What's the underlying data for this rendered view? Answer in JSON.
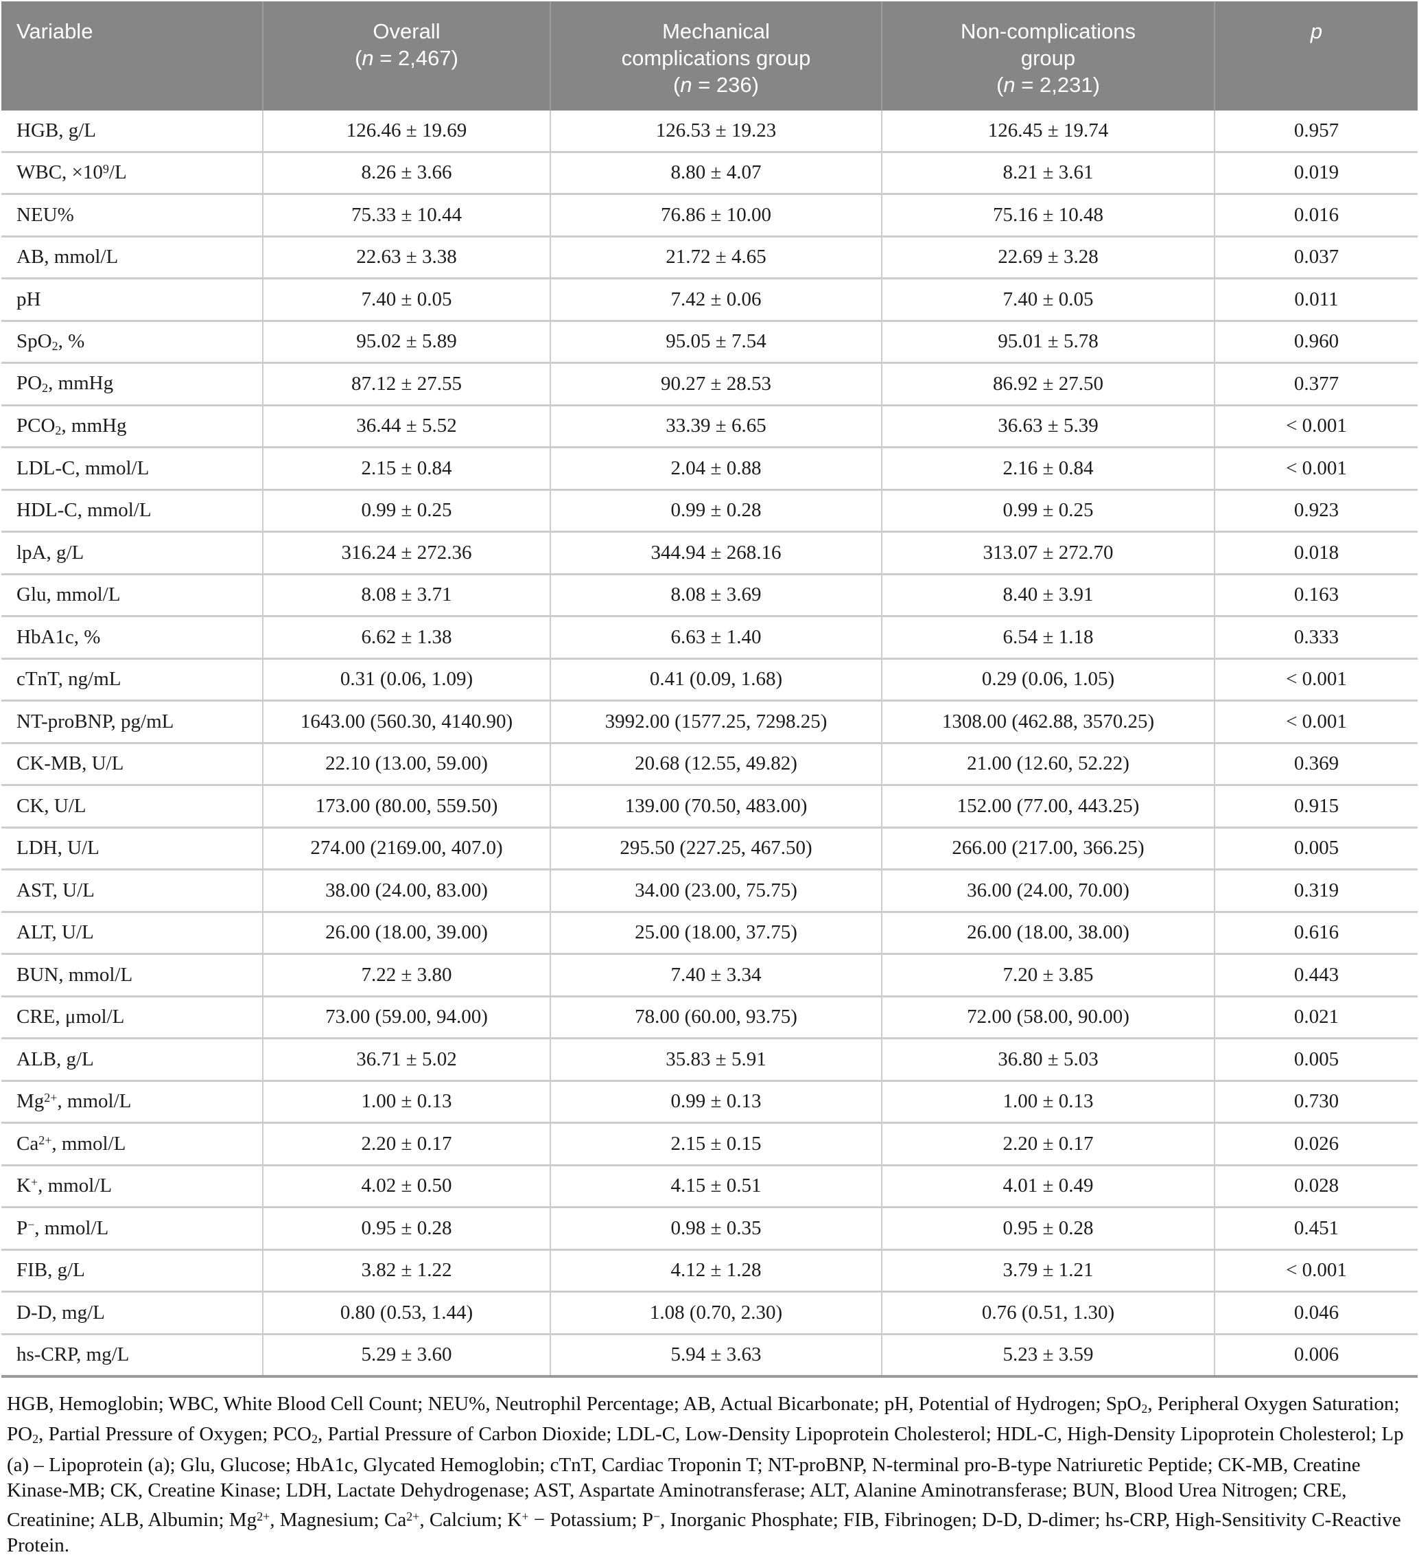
{
  "colors": {
    "header_background": "#868686",
    "header_text": "#ffffff",
    "cell_border": "#cccccc",
    "table_bottom_border": "#9a9a9a",
    "body_text": "#1c1c1c"
  },
  "table": {
    "header": {
      "variable_html": "Variable",
      "overall_html": "Overall<br>(<i>n</i> = 2,467)",
      "mech_html": "Mechanical<br>complications group<br>(<i>n</i> = 236)",
      "noncomp_html": "Non-complications<br>group<br>(<i>n</i> = 2,231)",
      "p_html": "<i>p</i>"
    },
    "rows": [
      {
        "variable_html": "HGB, g/L",
        "overall": "126.46 ± 19.69",
        "mech": "126.53 ± 19.23",
        "noncomp": "126.45 ± 19.74",
        "p": "0.957"
      },
      {
        "variable_html": "WBC, ×10<sup>9</sup>/L",
        "overall": "8.26 ± 3.66",
        "mech": "8.80 ± 4.07",
        "noncomp": "8.21 ± 3.61",
        "p": "0.019"
      },
      {
        "variable_html": "NEU%",
        "overall": "75.33 ± 10.44",
        "mech": "76.86 ± 10.00",
        "noncomp": "75.16 ± 10.48",
        "p": "0.016"
      },
      {
        "variable_html": "AB, mmol/L",
        "overall": "22.63 ± 3.38",
        "mech": "21.72 ± 4.65",
        "noncomp": "22.69 ± 3.28",
        "p": "0.037"
      },
      {
        "variable_html": "pH",
        "overall": "7.40 ± 0.05",
        "mech": "7.42 ± 0.06",
        "noncomp": "7.40 ± 0.05",
        "p": "0.011"
      },
      {
        "variable_html": "SpO<sub>2</sub>, %",
        "overall": "95.02 ± 5.89",
        "mech": "95.05 ± 7.54",
        "noncomp": "95.01 ± 5.78",
        "p": "0.960"
      },
      {
        "variable_html": "PO<sub>2</sub>, mmHg",
        "overall": "87.12 ± 27.55",
        "mech": "90.27 ± 28.53",
        "noncomp": "86.92 ± 27.50",
        "p": "0.377"
      },
      {
        "variable_html": "PCO<sub>2</sub>, mmHg",
        "overall": "36.44 ± 5.52",
        "mech": "33.39 ± 6.65",
        "noncomp": "36.63 ± 5.39",
        "p": "< 0.001"
      },
      {
        "variable_html": "LDL-C, mmol/L",
        "overall": "2.15 ± 0.84",
        "mech": "2.04 ± 0.88",
        "noncomp": "2.16 ± 0.84",
        "p": "< 0.001"
      },
      {
        "variable_html": "HDL-C, mmol/L",
        "overall": "0.99 ± 0.25",
        "mech": "0.99 ± 0.28",
        "noncomp": "0.99 ± 0.25",
        "p": "0.923"
      },
      {
        "variable_html": "lpA, g/L",
        "overall": "316.24 ± 272.36",
        "mech": "344.94 ± 268.16",
        "noncomp": "313.07 ± 272.70",
        "p": "0.018"
      },
      {
        "variable_html": "Glu, mmol/L",
        "overall": "8.08 ± 3.71",
        "mech": "8.08 ± 3.69",
        "noncomp": "8.40 ± 3.91",
        "p": "0.163"
      },
      {
        "variable_html": "HbA1c, %",
        "overall": "6.62 ± 1.38",
        "mech": "6.63 ± 1.40",
        "noncomp": "6.54 ± 1.18",
        "p": "0.333"
      },
      {
        "variable_html": "cTnT, ng/mL",
        "overall": "0.31 (0.06, 1.09)",
        "mech": "0.41 (0.09, 1.68)",
        "noncomp": "0.29 (0.06, 1.05)",
        "p": "< 0.001"
      },
      {
        "variable_html": "NT-proBNP, pg/mL",
        "overall": "1643.00 (560.30, 4140.90)",
        "mech": "3992.00 (1577.25, 7298.25)",
        "noncomp": "1308.00 (462.88, 3570.25)",
        "p": "< 0.001"
      },
      {
        "variable_html": "CK-MB, U/L",
        "overall": "22.10 (13.00, 59.00)",
        "mech": "20.68 (12.55, 49.82)",
        "noncomp": "21.00 (12.60, 52.22)",
        "p": "0.369"
      },
      {
        "variable_html": "CK, U/L",
        "overall": "173.00 (80.00, 559.50)",
        "mech": "139.00 (70.50, 483.00)",
        "noncomp": "152.00 (77.00, 443.25)",
        "p": "0.915"
      },
      {
        "variable_html": "LDH, U/L",
        "overall": "274.00 (2169.00, 407.0)",
        "mech": "295.50 (227.25, 467.50)",
        "noncomp": "266.00 (217.00, 366.25)",
        "p": "0.005"
      },
      {
        "variable_html": "AST, U/L",
        "overall": "38.00 (24.00, 83.00)",
        "mech": "34.00 (23.00, 75.75)",
        "noncomp": "36.00 (24.00, 70.00)",
        "p": "0.319"
      },
      {
        "variable_html": "ALT, U/L",
        "overall": "26.00 (18.00, 39.00)",
        "mech": "25.00 (18.00, 37.75)",
        "noncomp": "26.00 (18.00, 38.00)",
        "p": "0.616"
      },
      {
        "variable_html": "BUN, mmol/L",
        "overall": "7.22 ± 3.80",
        "mech": "7.40 ± 3.34",
        "noncomp": "7.20 ± 3.85",
        "p": "0.443"
      },
      {
        "variable_html": "CRE, μmol/L",
        "overall": "73.00 (59.00, 94.00)",
        "mech": "78.00 (60.00, 93.75)",
        "noncomp": "72.00 (58.00, 90.00)",
        "p": "0.021"
      },
      {
        "variable_html": "ALB, g/L",
        "overall": "36.71 ± 5.02",
        "mech": "35.83 ± 5.91",
        "noncomp": "36.80 ± 5.03",
        "p": "0.005"
      },
      {
        "variable_html": "Mg<sup>2+</sup>, mmol/L",
        "overall": "1.00 ± 0.13",
        "mech": "0.99 ± 0.13",
        "noncomp": "1.00 ± 0.13",
        "p": "0.730"
      },
      {
        "variable_html": "Ca<sup>2+</sup>, mmol/L",
        "overall": "2.20 ± 0.17",
        "mech": "2.15 ± 0.15",
        "noncomp": "2.20 ± 0.17",
        "p": "0.026"
      },
      {
        "variable_html": "K<sup>+</sup>, mmol/L",
        "overall": "4.02 ± 0.50",
        "mech": "4.15 ± 0.51",
        "noncomp": "4.01 ± 0.49",
        "p": "0.028"
      },
      {
        "variable_html": "P<sup>−</sup>, mmol/L",
        "overall": "0.95 ± 0.28",
        "mech": "0.98 ± 0.35",
        "noncomp": "0.95 ± 0.28",
        "p": "0.451"
      },
      {
        "variable_html": "FIB, g/L",
        "overall": "3.82 ± 1.22",
        "mech": "4.12 ± 1.28",
        "noncomp": "3.79 ± 1.21",
        "p": "< 0.001"
      },
      {
        "variable_html": "D-D, mg/L",
        "overall": "0.80 (0.53, 1.44)",
        "mech": "1.08 (0.70, 2.30)",
        "noncomp": "0.76 (0.51, 1.30)",
        "p": "0.046"
      },
      {
        "variable_html": "hs-CRP, mg/L",
        "overall": "5.29 ± 3.60",
        "mech": "5.94 ± 3.63",
        "noncomp": "5.23 ± 3.59",
        "p": "0.006"
      }
    ]
  },
  "footnote_html": "HGB, Hemoglobin; WBC, White Blood Cell Count; NEU%, Neutrophil Percentage; AB, Actual Bicarbonate; pH, Potential of Hydrogen; SpO<sub>2</sub>, Peripheral Oxygen Saturation; PO<sub>2</sub>, Partial Pressure of Oxygen; PCO<sub>2</sub>, Partial Pressure of Carbon Dioxide; LDL-C, Low-Density Lipoprotein Cholesterol; HDL-C, High-Density Lipoprotein Cholesterol; Lp (a) – Lipoprotein (a); Glu, Glucose; HbA1c, Glycated Hemoglobin; cTnT, Cardiac Troponin T; NT-proBNP, N-terminal pro-B-type Natriuretic Peptide; CK-MB, Creatine Kinase-MB; CK, Creatine Kinase; LDH, Lactate Dehydrogenase; AST, Aspartate Aminotransferase; ALT, Alanine Aminotransferase; BUN, Blood Urea Nitrogen; CRE, Creatinine; ALB, Albumin; Mg<sup>2+</sup>, Magnesium; Ca<sup>2+</sup>, Calcium; K<sup>+</sup> − Potassium; P<sup>−</sup>, Inorganic Phosphate; FIB, Fibrinogen; D-D, D-dimer; hs-CRP, High-Sensitivity C-Reactive Protein."
}
